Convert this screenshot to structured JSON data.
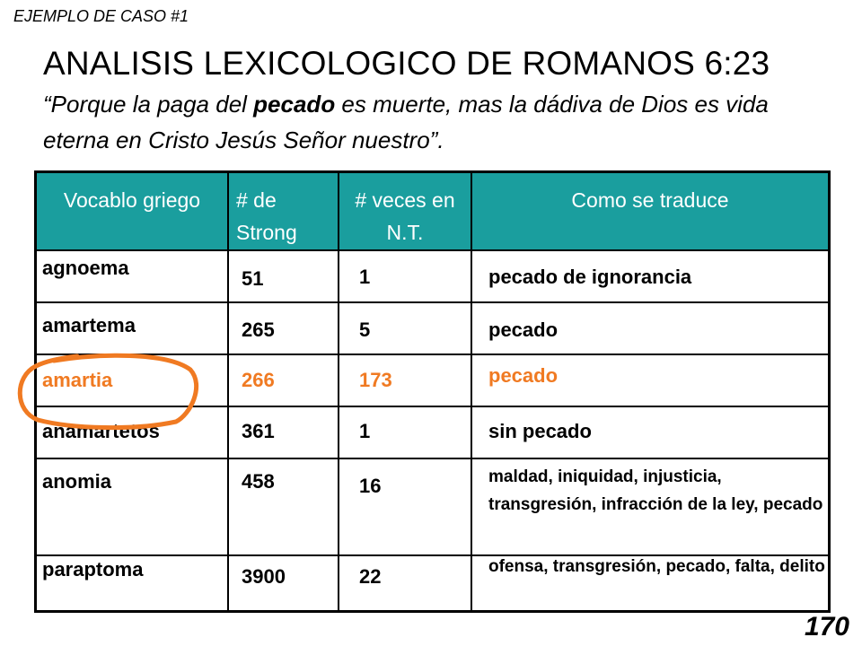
{
  "case_label": "EJEMPLO DE CASO #1",
  "title": "ANALISIS LEXICOLOGICO DE ROMANOS 6:23",
  "quote": {
    "before": "“Porque la paga del ",
    "emphasis": "pecado",
    "after": " es muerte, mas la dádiva de Dios es vida eterna en Cristo Jesús Señor nuestro”."
  },
  "table": {
    "headers": [
      "Vocablo griego",
      "# de Strong",
      "# veces en N.T.",
      "Como se traduce"
    ],
    "rows": [
      {
        "word": "agnoema",
        "strong": "51",
        "count": "1",
        "translation": "pecado de ignorancia",
        "highlighted": false
      },
      {
        "word": "amartema",
        "strong": "265",
        "count": "5",
        "translation": "pecado",
        "highlighted": false
      },
      {
        "word": "amartia",
        "strong": "266",
        "count": "173",
        "translation": "pecado",
        "highlighted": true
      },
      {
        "word": "anamartetos",
        "strong": "361",
        "count": "1",
        "translation": "sin pecado",
        "highlighted": false
      },
      {
        "word": "anomia",
        "strong": "458",
        "count": "16",
        "translation": "maldad, iniquidad, injusticia, transgresión, infracción de la ley, pecado",
        "highlighted": false
      },
      {
        "word": "paraptoma",
        "strong": "3900",
        "count": "22",
        "translation": "ofensa, transgresión, pecado, falta, delito",
        "highlighted": false
      }
    ]
  },
  "highlight_color": "#f07a22",
  "header_color": "#1a9e9e",
  "page_number": "170"
}
